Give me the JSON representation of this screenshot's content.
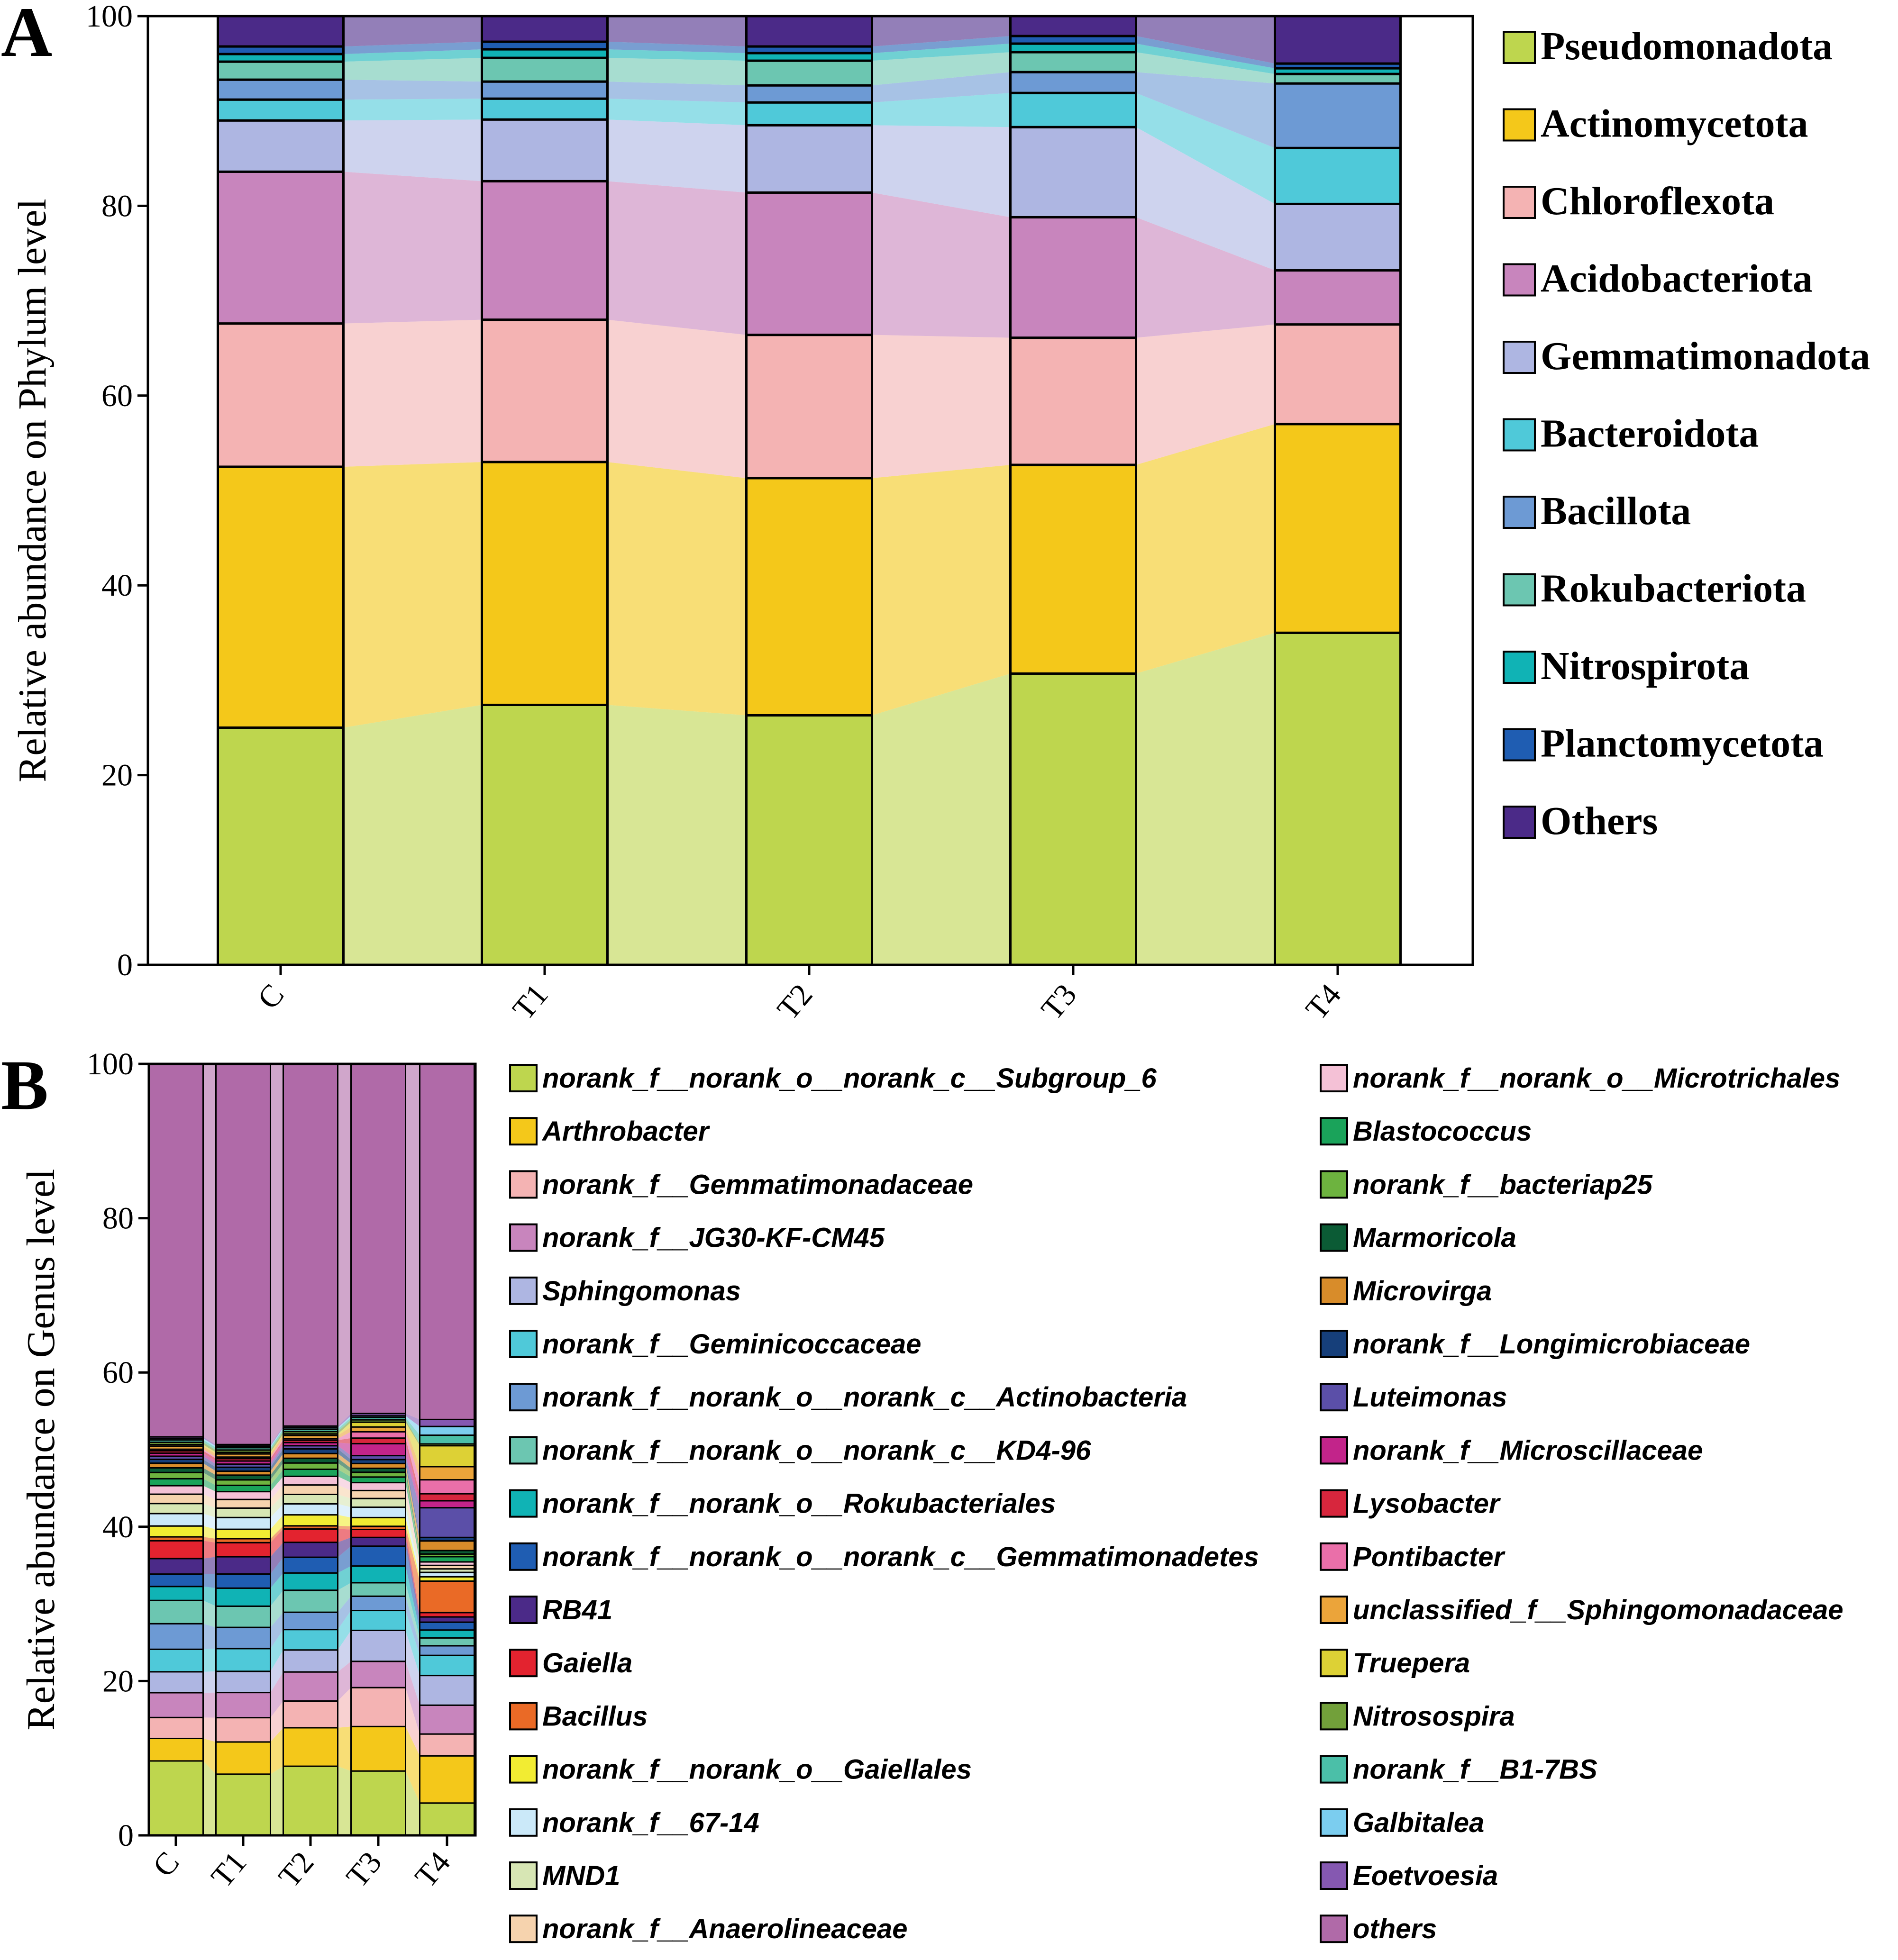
{
  "chart_data": [
    {
      "panel": "A",
      "type": "bar",
      "stacked": true,
      "percent": true,
      "connected_areas": true,
      "title": "",
      "xlabel": "",
      "ylabel": "Relative abundance on Phylum level",
      "ylim": [
        0,
        100
      ],
      "yticks": [
        0,
        20,
        40,
        60,
        80,
        100
      ],
      "categories": [
        "C",
        "T1",
        "T2",
        "T3",
        "T4"
      ],
      "legend_position": "right",
      "series": [
        {
          "name": "Pseudomonadota",
          "color": "#bed64e",
          "values": [
            25.0,
            27.4,
            26.3,
            30.7,
            35.0
          ]
        },
        {
          "name": "Actinomycetota",
          "color": "#f4c81a",
          "values": [
            27.5,
            25.6,
            25.0,
            22.0,
            22.0
          ]
        },
        {
          "name": "Chloroflexota",
          "color": "#f4b3b3",
          "values": [
            15.1,
            15.0,
            15.1,
            13.4,
            10.5
          ]
        },
        {
          "name": "Acidobacteriota",
          "color": "#c885bd",
          "values": [
            16.0,
            14.6,
            15.0,
            12.7,
            5.7
          ]
        },
        {
          "name": "Gemmatimonadota",
          "color": "#aeb6e2",
          "values": [
            5.4,
            6.5,
            7.1,
            9.5,
            7.0
          ]
        },
        {
          "name": "Bacteroidota",
          "color": "#4fc9d9",
          "values": [
            2.2,
            2.2,
            2.4,
            3.6,
            5.9
          ]
        },
        {
          "name": "Bacillota",
          "color": "#6d9ad4",
          "values": [
            2.1,
            1.8,
            1.8,
            2.2,
            6.8
          ]
        },
        {
          "name": "Rokubacteriota",
          "color": "#6cc6b1",
          "values": [
            1.9,
            2.5,
            2.6,
            2.1,
            1.0
          ]
        },
        {
          "name": "Nitrospirota",
          "color": "#10b3b5",
          "values": [
            0.8,
            0.9,
            0.8,
            0.9,
            0.6
          ]
        },
        {
          "name": "Planctomycetota",
          "color": "#1f5db2",
          "values": [
            0.8,
            0.8,
            0.7,
            0.8,
            0.5
          ]
        },
        {
          "name": "Others",
          "color": "#4b2a88",
          "values": [
            3.2,
            2.7,
            3.2,
            2.1,
            5.0
          ]
        }
      ]
    },
    {
      "panel": "B",
      "type": "bar",
      "stacked": true,
      "percent": true,
      "connected_areas": true,
      "title": "",
      "xlabel": "",
      "ylabel": "Relative abundance on Genus level",
      "ylim": [
        0,
        100
      ],
      "yticks": [
        0,
        20,
        40,
        60,
        80,
        100
      ],
      "categories": [
        "C",
        "T1",
        "T2",
        "T3",
        "T4"
      ],
      "legend_position": "right",
      "series": [
        {
          "name": "norank_f__norank_o__norank_c__Subgroup_6",
          "color": "#bed64e",
          "values": [
            9.6,
            7.8,
            8.8,
            8.1,
            3.7
          ]
        },
        {
          "name": "Arthrobacter",
          "color": "#f4c81a",
          "values": [
            2.9,
            4.1,
            4.9,
            5.6,
            5.4
          ]
        },
        {
          "name": "norank_f__Gemmatimonadaceae",
          "color": "#f4b3b3",
          "values": [
            2.7,
            3.1,
            3.4,
            4.9,
            2.5
          ]
        },
        {
          "name": "norank_f__JG30-KF-CM45",
          "color": "#c885bd",
          "values": [
            3.2,
            3.2,
            3.7,
            3.3,
            3.3
          ]
        },
        {
          "name": "Sphingomonas",
          "color": "#aeb6e2",
          "values": [
            2.7,
            2.7,
            2.8,
            3.9,
            3.4
          ]
        },
        {
          "name": "norank_f__Geminicoccaceae",
          "color": "#4fc9d9",
          "values": [
            2.9,
            2.9,
            2.6,
            2.5,
            2.3
          ]
        },
        {
          "name": "norank_f__norank_o__norank_c__Actinobacteria",
          "color": "#6d9ad4",
          "values": [
            3.3,
            2.7,
            2.2,
            1.8,
            1.1
          ]
        },
        {
          "name": "norank_f__norank_o__norank_c__KD4-96",
          "color": "#6cc6b1",
          "values": [
            3.0,
            2.7,
            2.8,
            1.7,
            0.9
          ]
        },
        {
          "name": "norank_f__norank_o__Rokubacteriales",
          "color": "#10b3b5",
          "values": [
            1.8,
            2.3,
            2.2,
            2.1,
            0.9
          ]
        },
        {
          "name": "norank_f__norank_o__norank_c__Gemmatimonadetes",
          "color": "#1f5db2",
          "values": [
            1.6,
            1.8,
            2.0,
            2.5,
            0.9
          ]
        },
        {
          "name": "RB41",
          "color": "#4b2a88",
          "values": [
            2.0,
            2.2,
            1.9,
            1.1,
            0.6
          ]
        },
        {
          "name": "Gaiella",
          "color": "#e3232f",
          "values": [
            2.3,
            1.8,
            1.7,
            1.0,
            0.5
          ]
        },
        {
          "name": "Bacillus",
          "color": "#ea6a26",
          "values": [
            0.5,
            0.5,
            0.4,
            0.4,
            3.6
          ]
        },
        {
          "name": "norank_f__norank_o__Gaiellales",
          "color": "#f2ec32",
          "values": [
            1.4,
            1.2,
            1.4,
            1.1,
            0.5
          ]
        },
        {
          "name": "norank_f__67-14",
          "color": "#cbe9f9",
          "values": [
            1.6,
            1.5,
            1.4,
            1.3,
            0.5
          ]
        },
        {
          "name": "MND1",
          "color": "#d7e6b4",
          "values": [
            1.3,
            1.2,
            1.2,
            1.1,
            0.4
          ]
        },
        {
          "name": "norank_f__Anaerolineaceae",
          "color": "#f6d3ae",
          "values": [
            1.2,
            1.1,
            1.2,
            1.0,
            0.4
          ]
        },
        {
          "name": "norank_f__norank_o__Microtrichales",
          "color": "#f4c1d6",
          "values": [
            1.1,
            1.0,
            1.1,
            1.0,
            0.4
          ]
        },
        {
          "name": "Blastococcus",
          "color": "#1aa35a",
          "values": [
            0.9,
            0.8,
            0.9,
            0.7,
            0.6
          ]
        },
        {
          "name": "norank_f__bacteriap25",
          "color": "#6db33f",
          "values": [
            0.8,
            0.7,
            0.8,
            0.6,
            0.3
          ]
        },
        {
          "name": "Marmoricola",
          "color": "#0b5b35",
          "values": [
            0.6,
            0.6,
            0.6,
            0.5,
            0.4
          ]
        },
        {
          "name": "Microvirga",
          "color": "#d88c2a",
          "values": [
            0.6,
            0.5,
            0.6,
            0.6,
            1.1
          ]
        },
        {
          "name": "norank_f__Longimicrobiaceae",
          "color": "#163f7a",
          "values": [
            0.5,
            0.5,
            0.6,
            0.5,
            0.4
          ]
        },
        {
          "name": "Luteimonas",
          "color": "#5b4fa8",
          "values": [
            0.4,
            0.4,
            0.4,
            0.5,
            3.4
          ]
        },
        {
          "name": "norank_f__Microscillaceae",
          "color": "#c2248a",
          "values": [
            0.4,
            0.4,
            0.4,
            1.5,
            0.8
          ]
        },
        {
          "name": "Lysobacter",
          "color": "#d7263d",
          "values": [
            0.3,
            0.3,
            0.3,
            0.7,
            0.8
          ]
        },
        {
          "name": "Pontibacter",
          "color": "#ea6fa9",
          "values": [
            0.2,
            0.2,
            0.2,
            0.8,
            1.6
          ]
        },
        {
          "name": "unclassified_f__Sphingomonadaceae",
          "color": "#eba43a",
          "values": [
            0.4,
            0.4,
            0.4,
            0.6,
            1.5
          ]
        },
        {
          "name": "Truepera",
          "color": "#ddd135",
          "values": [
            0.2,
            0.2,
            0.2,
            0.6,
            2.4
          ]
        },
        {
          "name": "Nitrosospira",
          "color": "#72a03a",
          "values": [
            0.3,
            0.3,
            0.3,
            0.3,
            0.2
          ]
        },
        {
          "name": "norank_f__B1-7BS",
          "color": "#4bbfa8",
          "values": [
            0.3,
            0.3,
            0.3,
            0.3,
            1.0
          ]
        },
        {
          "name": "Galbitalea",
          "color": "#7bcdef",
          "values": [
            0.2,
            0.2,
            0.2,
            0.2,
            1.0
          ]
        },
        {
          "name": "Eoetvoesia",
          "color": "#8558b1",
          "values": [
            0.2,
            0.2,
            0.2,
            0.3,
            0.8
          ]
        },
        {
          "name": "others",
          "color": "#b06aa8",
          "values": [
            48.1,
            48.5,
            46.1,
            44.0,
            40.7
          ]
        }
      ]
    }
  ],
  "labels": {
    "panelA": "A",
    "panelB": "B"
  }
}
